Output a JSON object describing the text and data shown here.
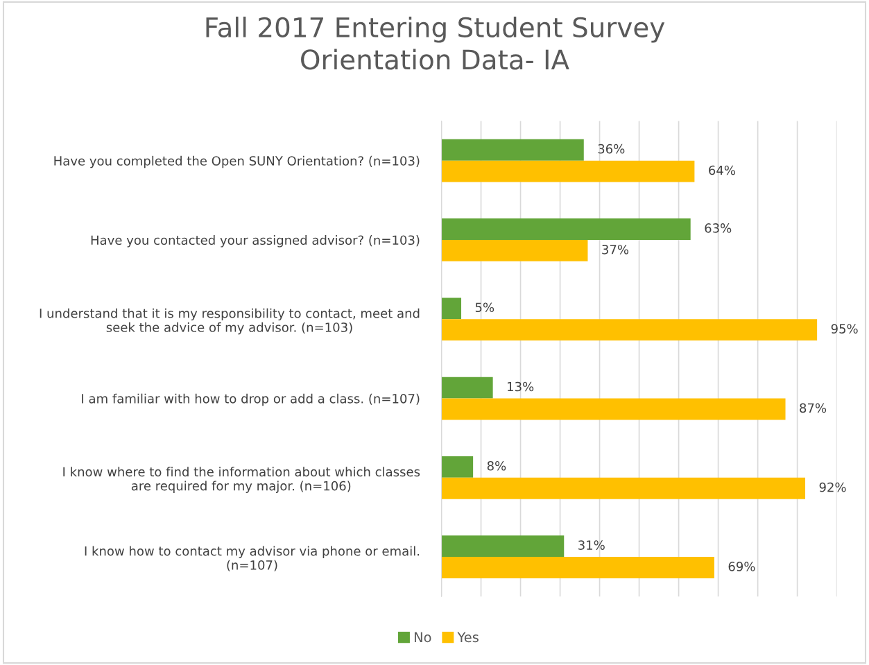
{
  "chart_data": {
    "type": "bar",
    "orientation": "horizontal",
    "title": "Fall 2017 Entering Student Survey\nOrientation Data- IA",
    "categories": [
      "Have you completed the Open SUNY Orientation? (n=103)",
      "Have you contacted your assigned advisor? (n=103)",
      "I understand that it is my responsibility to contact, meet and\nseek the advice of my advisor. (n=103)",
      "I am familiar with how to drop or add a class. (n=107)",
      "I know where to find the information about which classes\nare required for my major. (n=106)",
      "I know how to contact my advisor via phone or email.\n(n=107)"
    ],
    "series": [
      {
        "name": "No",
        "color": "#62a539",
        "values": [
          36,
          63,
          5,
          13,
          8,
          31
        ],
        "value_labels": [
          "36%",
          "63%",
          "5%",
          "13%",
          "8%",
          "31%"
        ]
      },
      {
        "name": "Yes",
        "color": "#ffc000",
        "values": [
          64,
          37,
          95,
          87,
          92,
          69
        ],
        "value_labels": [
          "64%",
          "37%",
          "95%",
          "87%",
          "92%",
          "69%"
        ]
      }
    ],
    "xlim": [
      0,
      100
    ],
    "xticks": [
      {
        "value": 0,
        "label": null
      },
      {
        "value": 10,
        "label": null
      },
      {
        "value": 20,
        "label": null
      },
      {
        "value": 30,
        "label": null
      },
      {
        "value": 40,
        "label": null
      },
      {
        "value": 50,
        "label": null
      },
      {
        "value": 60,
        "label": null
      },
      {
        "value": 70,
        "label": null
      },
      {
        "value": 80,
        "label": null
      },
      {
        "value": 90,
        "label": null
      },
      {
        "value": 100,
        "label": null
      }
    ],
    "tick_labels": "y",
    "grid": "x",
    "legend": "bottom"
  }
}
